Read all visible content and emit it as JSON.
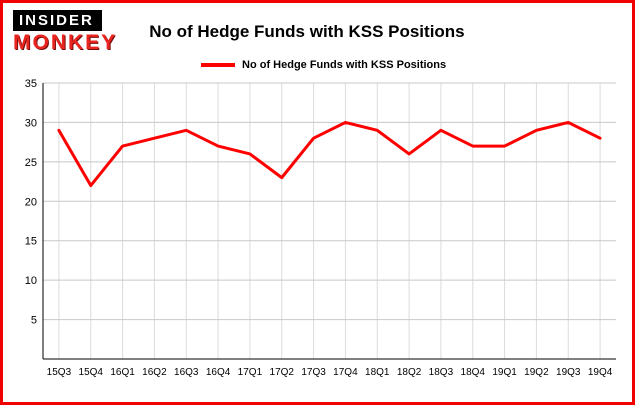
{
  "header": {
    "logo_line1": "INSIDER",
    "logo_line2": "MONKEY",
    "title": "No of Hedge Funds with KSS Positions"
  },
  "legend": {
    "label": "No of Hedge Funds with KSS Positions",
    "color": "#ff0000"
  },
  "colors": {
    "frame": "#f10000",
    "line": "#ff0000",
    "gridline": "#c8c8c8",
    "axis": "#000000",
    "background": "#ffffff"
  },
  "chart_data": {
    "type": "line",
    "title": "No of Hedge Funds with KSS Positions",
    "categories": [
      "15Q3",
      "15Q4",
      "16Q1",
      "16Q2",
      "16Q3",
      "16Q4",
      "17Q1",
      "17Q2",
      "17Q3",
      "17Q4",
      "18Q1",
      "18Q2",
      "18Q3",
      "18Q4",
      "19Q1",
      "19Q2",
      "19Q3",
      "19Q4"
    ],
    "series": [
      {
        "name": "No of Hedge Funds with KSS Positions",
        "values": [
          29,
          22,
          27,
          28,
          29,
          27,
          26,
          23,
          28,
          30,
          29,
          26,
          29,
          27,
          27,
          29,
          30,
          28
        ]
      }
    ],
    "xlabel": "",
    "ylabel": "",
    "ylim": [
      0,
      35
    ],
    "ytick_interval": 5,
    "grid": true,
    "legend_position": "top-left",
    "line_color": "#ff0000"
  }
}
